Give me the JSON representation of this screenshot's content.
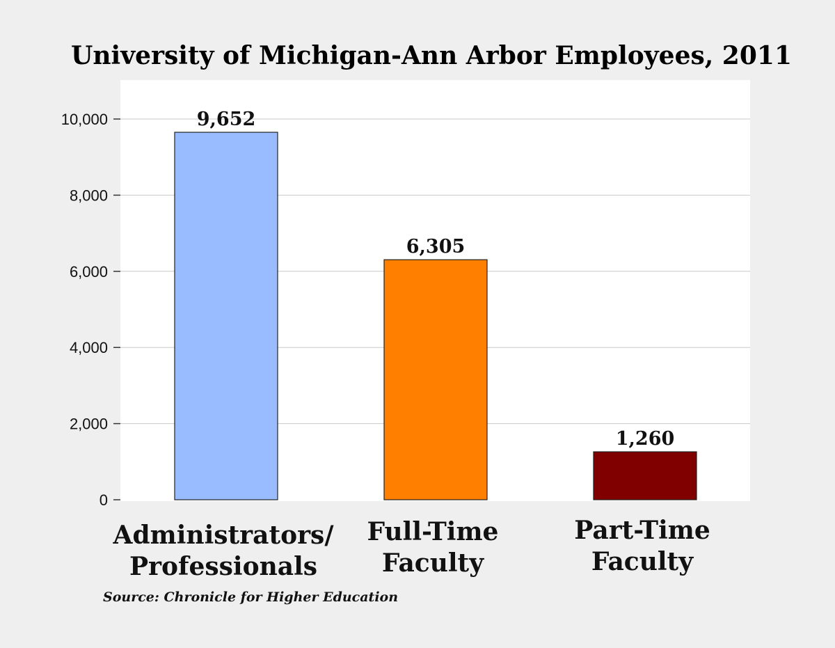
{
  "chart_data": {
    "type": "bar",
    "title": "University of Michigan-Ann Arbor Employees, 2011",
    "categories": [
      [
        "Administrators/",
        "Professionals"
      ],
      [
        "Full-Time",
        "Faculty"
      ],
      [
        "Part-Time",
        "Faculty"
      ]
    ],
    "values": [
      9652,
      6305,
      1260
    ],
    "value_labels": [
      "9,652",
      "6,305",
      "1,260"
    ],
    "colors": [
      "#99bbff",
      "#ff8000",
      "#800000"
    ],
    "ylim": [
      0,
      10000
    ],
    "yticks": [
      {
        "value": 0,
        "label": "0"
      },
      {
        "value": 2000,
        "label": "2,000"
      },
      {
        "value": 4000,
        "label": "4,000"
      },
      {
        "value": 6000,
        "label": "6,000"
      },
      {
        "value": 8000,
        "label": "8,000"
      },
      {
        "value": 10000,
        "label": "10,000"
      }
    ],
    "xlabel": "",
    "ylabel": "",
    "grid": true,
    "legend": "none",
    "source": "Source: Chronicle for Higher Education"
  }
}
